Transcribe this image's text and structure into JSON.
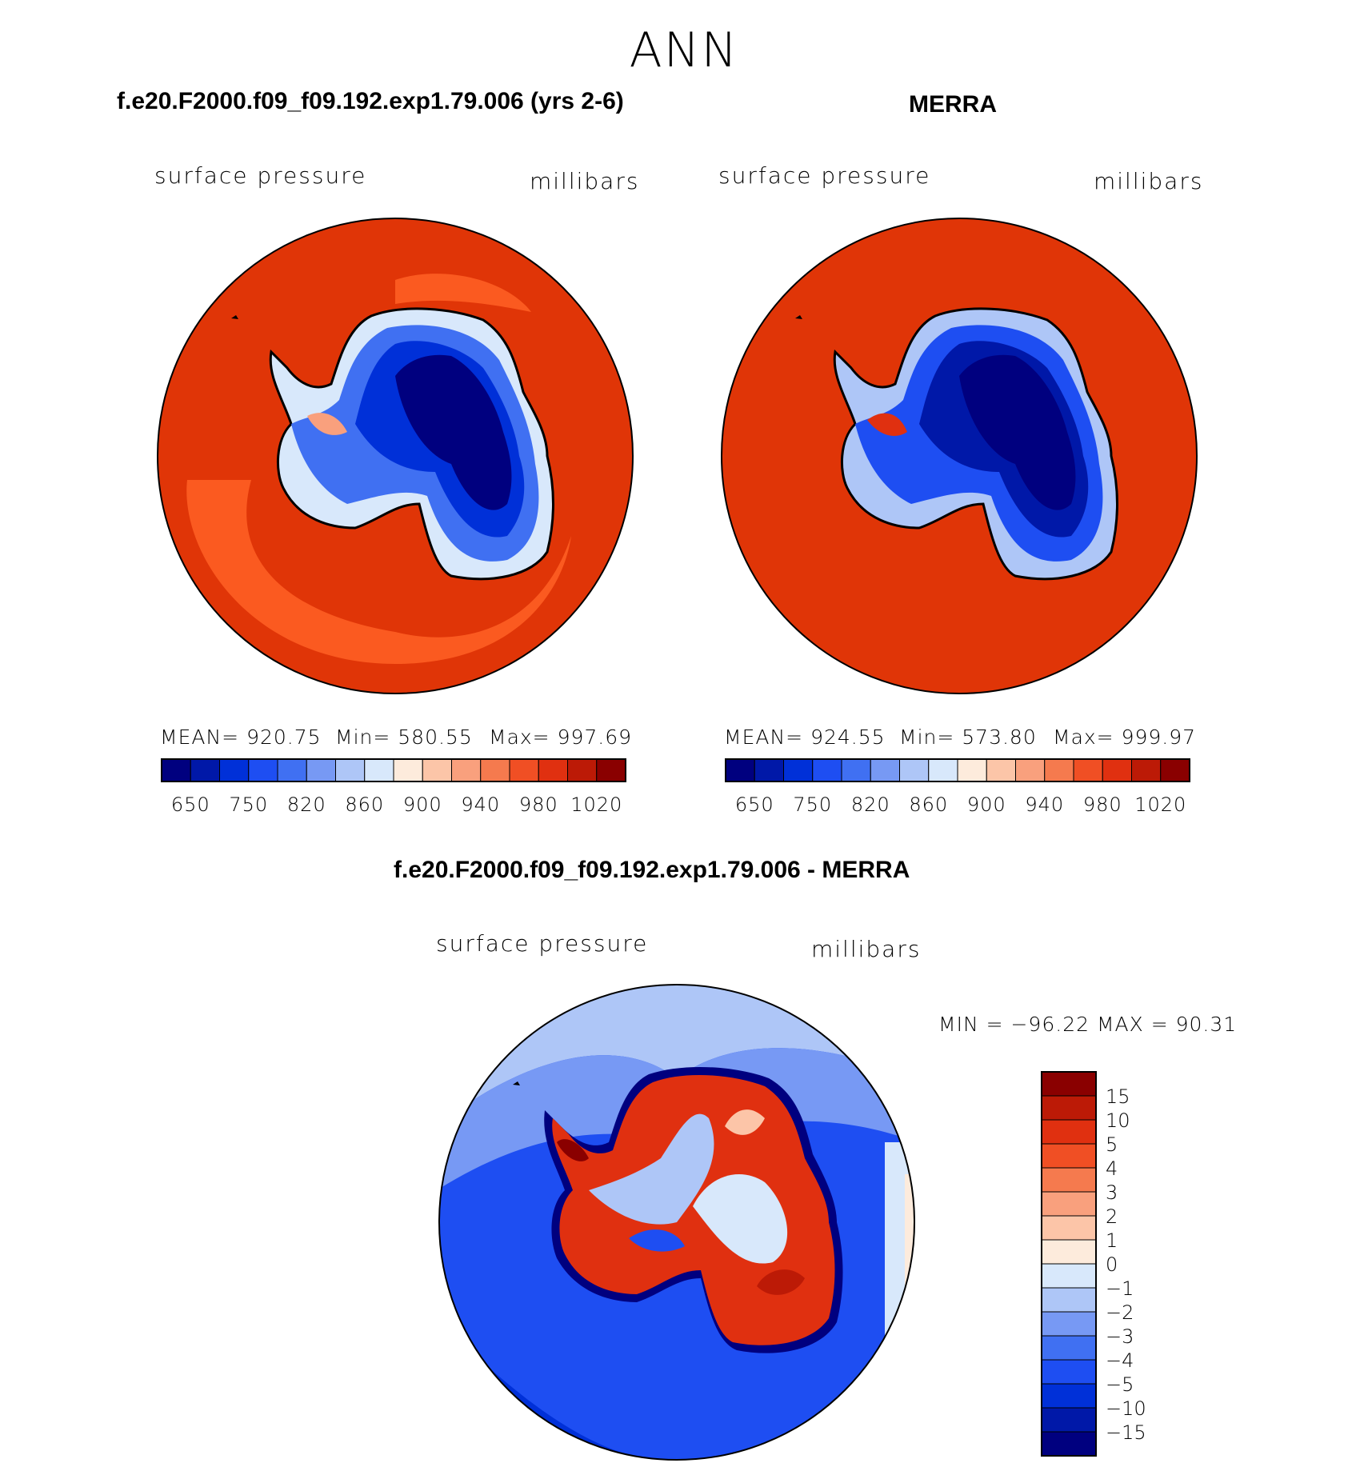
{
  "figure": {
    "title": "ANN"
  },
  "panels": [
    {
      "title": "f.e20.F2000.f09_f09.192.exp1.79.006 (yrs 2-6)",
      "left_label": "surface pressure",
      "right_label": "millibars",
      "stats": {
        "mean": "MEAN= 920.75",
        "min": "Min= 580.55",
        "max": "Max= 997.69"
      }
    },
    {
      "title": "MERRA",
      "left_label": "surface pressure",
      "right_label": "millibars",
      "stats": {
        "mean": "MEAN= 924.55",
        "min": "Min= 573.80",
        "max": "Max= 999.97"
      }
    },
    {
      "title": "f.e20.F2000.f09_f09.192.exp1.79.006 - MERRA",
      "left_label": "surface pressure",
      "right_label": "millibars",
      "stats": {
        "minmax": "MIN = −96.22 MAX =   90.31"
      }
    }
  ],
  "colorbars": {
    "absolute": {
      "colors": [
        "#00007f",
        "#0018a8",
        "#0030d8",
        "#1e4ef2",
        "#4070f2",
        "#7799f4",
        "#aec6f7",
        "#d8e8fb",
        "#fdebdc",
        "#fcc5a8",
        "#f9a07d",
        "#f57a4e",
        "#f04f24",
        "#e03010",
        "#bc1a06",
        "#8a0000"
      ],
      "tick_labels": [
        "650",
        "750",
        "820",
        "860",
        "900",
        "940",
        "980",
        "1020"
      ]
    },
    "difference": {
      "colors": [
        "#00007f",
        "#0018a8",
        "#0030d8",
        "#1e4ef2",
        "#4070f2",
        "#7799f4",
        "#aec6f7",
        "#d8e8fb",
        "#fdebdc",
        "#fcc5a8",
        "#f9a07d",
        "#f57a4e",
        "#f04f24",
        "#e03010",
        "#bc1a06",
        "#8a0000"
      ],
      "tick_labels": [
        "−15",
        "−10",
        "−5",
        "−4",
        "−3",
        "−2",
        "−1",
        "0",
        "1",
        "2",
        "3",
        "4",
        "5",
        "10",
        "15"
      ]
    }
  },
  "colors": {
    "ocean_absolute": "#e03507",
    "ocean_model_lighter": "#fb5a20",
    "diff_ocean": "#1e4ef2",
    "diff_ocean_light": "#aec6f7",
    "diff_positive": "#e03010"
  }
}
